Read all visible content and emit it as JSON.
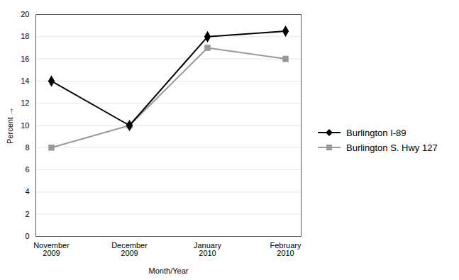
{
  "chart_data": {
    "type": "line",
    "xlabel": "Month/Year",
    "ylabel": "Percent",
    "categories": [
      "November\n2009",
      "December\n2009",
      "January\n2010",
      "February\n2010"
    ],
    "series": [
      {
        "name": "Burlington I-89",
        "color": "#000000",
        "marker": "diamond",
        "values": [
          14,
          10,
          18,
          18.5
        ]
      },
      {
        "name": "Burlington S. Hwy 127",
        "color": "#999999",
        "marker": "square",
        "values": [
          8,
          10,
          17,
          16
        ]
      }
    ],
    "ylim": [
      0,
      20
    ],
    "yticks": [
      0,
      2,
      4,
      6,
      8,
      10,
      12,
      14,
      16,
      18,
      20
    ],
    "grid": true,
    "legend": "right"
  }
}
